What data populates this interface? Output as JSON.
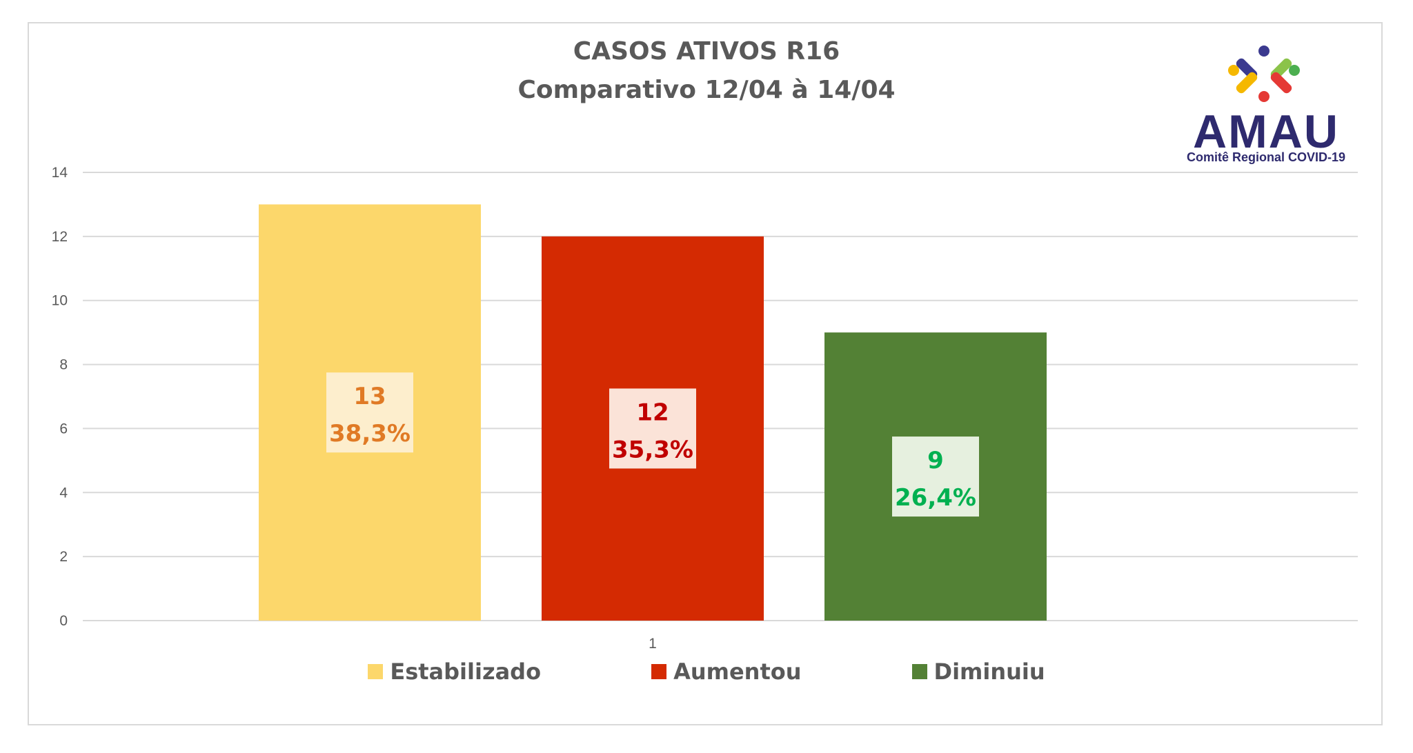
{
  "chart_data": {
    "type": "bar",
    "title": "CASOS ATIVOS R16",
    "subtitle": "Comparativo 12/04 à 14/04",
    "categories": [
      "1"
    ],
    "series": [
      {
        "name": "Estabilizado",
        "values": [
          13
        ],
        "label_value": "13",
        "label_pct": "38,3%",
        "color": "#fcd76b",
        "label_color": "#e07a25",
        "label_bg": "#fdeecd"
      },
      {
        "name": "Aumentou",
        "values": [
          12
        ],
        "label_value": "12",
        "label_pct": "35,3%",
        "color": "#d42a02",
        "label_color": "#c00000",
        "label_bg": "#fbe3d8"
      },
      {
        "name": "Diminuiu",
        "values": [
          9
        ],
        "label_value": "9",
        "label_pct": "26,4%",
        "color": "#538135",
        "label_color": "#00b050",
        "label_bg": "#e6f0df"
      }
    ],
    "ylim": [
      0,
      14
    ],
    "yticks": [
      "0",
      "2",
      "4",
      "6",
      "8",
      "10",
      "12",
      "14"
    ],
    "grid": true,
    "legend_position": "bottom"
  },
  "logo": {
    "text": "AMAU",
    "subtext": "Comitê Regional COVID-19"
  }
}
